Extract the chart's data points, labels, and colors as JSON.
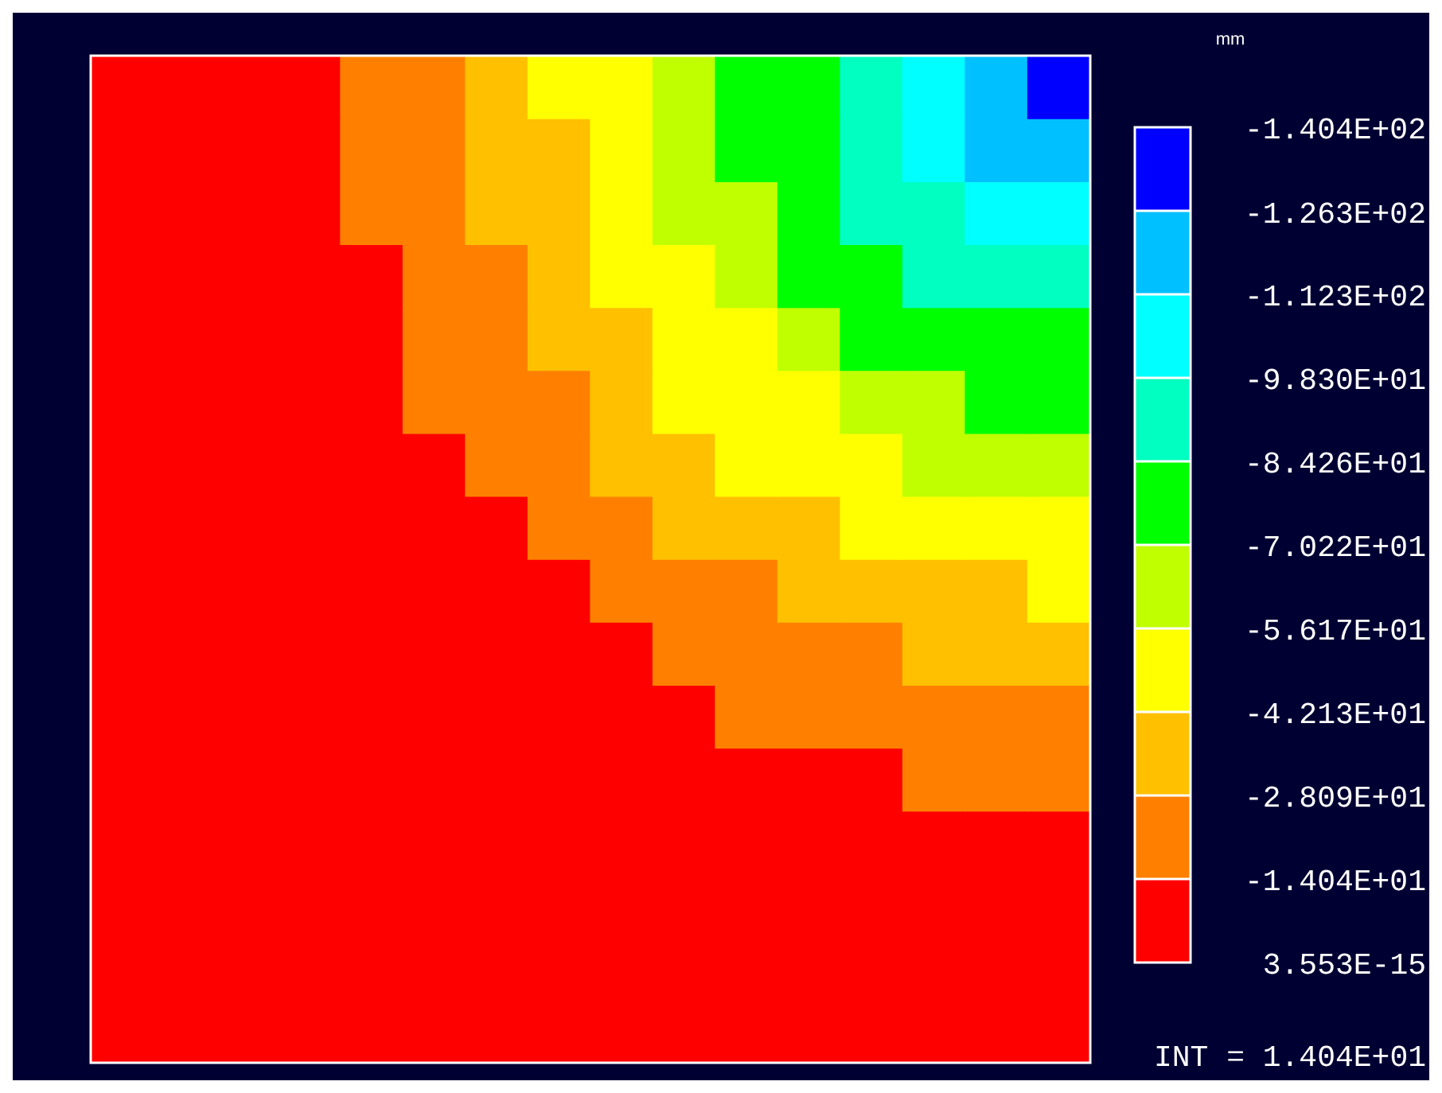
{
  "chart_data": {
    "type": "heatmap",
    "clabel": "mm",
    "annotations": [
      "INT = 1.404E+01"
    ],
    "categories": [
      null,
      null,
      null,
      null,
      null,
      null,
      null,
      null,
      null,
      null,
      null,
      null,
      null,
      null,
      null,
      null
    ],
    "y_categories": [
      null,
      null,
      null,
      null,
      null,
      null,
      null,
      null,
      null,
      null,
      null,
      null,
      null,
      null,
      null,
      null
    ],
    "clim": [
      3.553e-15,
      -140.4
    ],
    "colors": [
      "#ff0000",
      "#ff8000",
      "#ffc000",
      "#ffff00",
      "#c0ff00",
      "#00ff00",
      "#00ffc0",
      "#00ffff",
      "#00c0ff",
      "#0000ff"
    ],
    "cticks": [
      {
        "value": 3.553e-15,
        "label": "3.553E-15"
      },
      {
        "value": -14.04,
        "label": "-1.404E+01"
      },
      {
        "value": -28.09,
        "label": "-2.809E+01"
      },
      {
        "value": -42.13,
        "label": "-4.213E+01"
      },
      {
        "value": -56.17,
        "label": "-5.617E+01"
      },
      {
        "value": -70.22,
        "label": "-7.022E+01"
      },
      {
        "value": -84.26,
        "label": "-8.426E+01"
      },
      {
        "value": -98.3,
        "label": "-9.830E+01"
      },
      {
        "value": -112.3,
        "label": "-1.123E+02"
      },
      {
        "value": -126.3,
        "label": "-1.263E+02"
      },
      {
        "value": -140.4,
        "label": "-1.404E+02"
      }
    ],
    "cells": [
      [
        -7,
        -7,
        -7,
        -7,
        -21,
        -21,
        -35,
        -49,
        -49,
        -63,
        -77,
        -77,
        -91,
        -105,
        -119,
        -133
      ],
      [
        -7,
        -7,
        -7,
        -7,
        -21,
        -21,
        -35,
        -35,
        -49,
        -63,
        -77,
        -77,
        -91,
        -105,
        -119,
        -119
      ],
      [
        -7,
        -7,
        -7,
        -7,
        -21,
        -21,
        -35,
        -35,
        -49,
        -63,
        -63,
        -77,
        -91,
        -91,
        -105,
        -105
      ],
      [
        -7,
        -7,
        -7,
        -7,
        -7,
        -21,
        -21,
        -35,
        -49,
        -49,
        -63,
        -77,
        -77,
        -91,
        -91,
        -91
      ],
      [
        -7,
        -7,
        -7,
        -7,
        -7,
        -21,
        -21,
        -35,
        -35,
        -49,
        -49,
        -63,
        -77,
        -77,
        -77,
        -77
      ],
      [
        -7,
        -7,
        -7,
        -7,
        -7,
        -21,
        -21,
        -21,
        -35,
        -49,
        -49,
        -49,
        -63,
        -63,
        -77,
        -77
      ],
      [
        -7,
        -7,
        -7,
        -7,
        -7,
        -7,
        -21,
        -21,
        -35,
        -35,
        -49,
        -49,
        -49,
        -63,
        -63,
        -63
      ],
      [
        -7,
        -7,
        -7,
        -7,
        -7,
        -7,
        -7,
        -21,
        -21,
        -35,
        -35,
        -35,
        -49,
        -49,
        -49,
        -49
      ],
      [
        -7,
        -7,
        -7,
        -7,
        -7,
        -7,
        -7,
        -7,
        -21,
        -21,
        -21,
        -35,
        -35,
        -35,
        -35,
        -49
      ],
      [
        -7,
        -7,
        -7,
        -7,
        -7,
        -7,
        -7,
        -7,
        -7,
        -21,
        -21,
        -21,
        -21,
        -35,
        -35,
        -35
      ],
      [
        -7,
        -7,
        -7,
        -7,
        -7,
        -7,
        -7,
        -7,
        -7,
        -7,
        -21,
        -21,
        -21,
        -21,
        -21,
        -21
      ],
      [
        -7,
        -7,
        -7,
        -7,
        -7,
        -7,
        -7,
        -7,
        -7,
        -7,
        -7,
        -7,
        -7,
        -21,
        -21,
        -21
      ],
      [
        -7,
        -7,
        -7,
        -7,
        -7,
        -7,
        -7,
        -7,
        -7,
        -7,
        -7,
        -7,
        -7,
        -7,
        -7,
        -7
      ],
      [
        -7,
        -7,
        -7,
        -7,
        -7,
        -7,
        -7,
        -7,
        -7,
        -7,
        -7,
        -7,
        -7,
        -7,
        -7,
        -7
      ],
      [
        -7,
        -7,
        -7,
        -7,
        -7,
        -7,
        -7,
        -7,
        -7,
        -7,
        -7,
        -7,
        -7,
        -7,
        -7,
        -7
      ],
      [
        -7,
        -7,
        -7,
        -7,
        -7,
        -7,
        -7,
        -7,
        -7,
        -7,
        -7,
        -7,
        -7,
        -7,
        -7,
        -7
      ]
    ]
  }
}
